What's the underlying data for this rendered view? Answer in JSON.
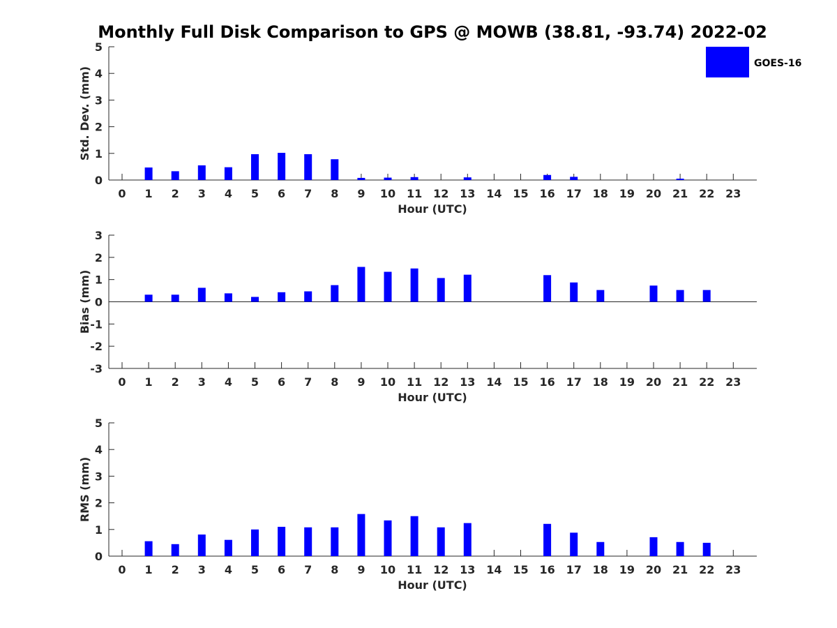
{
  "title": "Monthly Full Disk Comparison to GPS @ MOWB (38.81, -93.74) 2022-02",
  "legend": {
    "label": "GOES-16",
    "color": "#0000ff",
    "position": "top-right"
  },
  "chart_data": [
    {
      "type": "bar",
      "ylabel": "Std. Dev. (mm)",
      "xlabel": "Hour (UTC)",
      "ylim": [
        0,
        5
      ],
      "yticks": [
        0,
        1,
        2,
        3,
        4,
        5
      ],
      "categories": [
        "0",
        "1",
        "2",
        "3",
        "4",
        "5",
        "6",
        "7",
        "8",
        "9",
        "10",
        "11",
        "12",
        "13",
        "14",
        "15",
        "16",
        "17",
        "18",
        "19",
        "20",
        "21",
        "22",
        "23"
      ],
      "series": [
        {
          "name": "GOES-16",
          "values": [
            null,
            0.47,
            0.33,
            0.55,
            0.48,
            0.97,
            1.02,
            0.97,
            0.78,
            0.08,
            0.09,
            0.11,
            null,
            0.1,
            null,
            null,
            0.19,
            0.12,
            null,
            null,
            null,
            0.05,
            null,
            null
          ]
        }
      ]
    },
    {
      "type": "bar",
      "ylabel": "Bias (mm)",
      "xlabel": "Hour (UTC)",
      "ylim": [
        -3,
        3
      ],
      "yticks": [
        -3,
        -2,
        -1,
        0,
        1,
        2,
        3
      ],
      "zero_line": true,
      "categories": [
        "0",
        "1",
        "2",
        "3",
        "4",
        "5",
        "6",
        "7",
        "8",
        "9",
        "10",
        "11",
        "12",
        "13",
        "14",
        "15",
        "16",
        "17",
        "18",
        "19",
        "20",
        "21",
        "22",
        "23"
      ],
      "series": [
        {
          "name": "GOES-16",
          "values": [
            null,
            0.32,
            0.32,
            0.63,
            0.38,
            0.22,
            0.43,
            0.47,
            0.75,
            1.57,
            1.35,
            1.5,
            1.07,
            1.22,
            null,
            null,
            1.2,
            0.87,
            0.53,
            null,
            0.73,
            0.53,
            0.53,
            null
          ]
        }
      ]
    },
    {
      "type": "bar",
      "ylabel": "RMS (mm)",
      "xlabel": "Hour (UTC)",
      "ylim": [
        0,
        5
      ],
      "yticks": [
        0,
        1,
        2,
        3,
        4,
        5
      ],
      "categories": [
        "0",
        "1",
        "2",
        "3",
        "4",
        "5",
        "6",
        "7",
        "8",
        "9",
        "10",
        "11",
        "12",
        "13",
        "14",
        "15",
        "16",
        "17",
        "18",
        "19",
        "20",
        "21",
        "22",
        "23"
      ],
      "series": [
        {
          "name": "GOES-16",
          "values": [
            null,
            0.56,
            0.45,
            0.81,
            0.61,
            1.0,
            1.1,
            1.08,
            1.08,
            1.58,
            1.34,
            1.5,
            1.08,
            1.24,
            null,
            null,
            1.21,
            0.88,
            0.53,
            null,
            0.71,
            0.53,
            0.5,
            null
          ]
        }
      ]
    }
  ]
}
